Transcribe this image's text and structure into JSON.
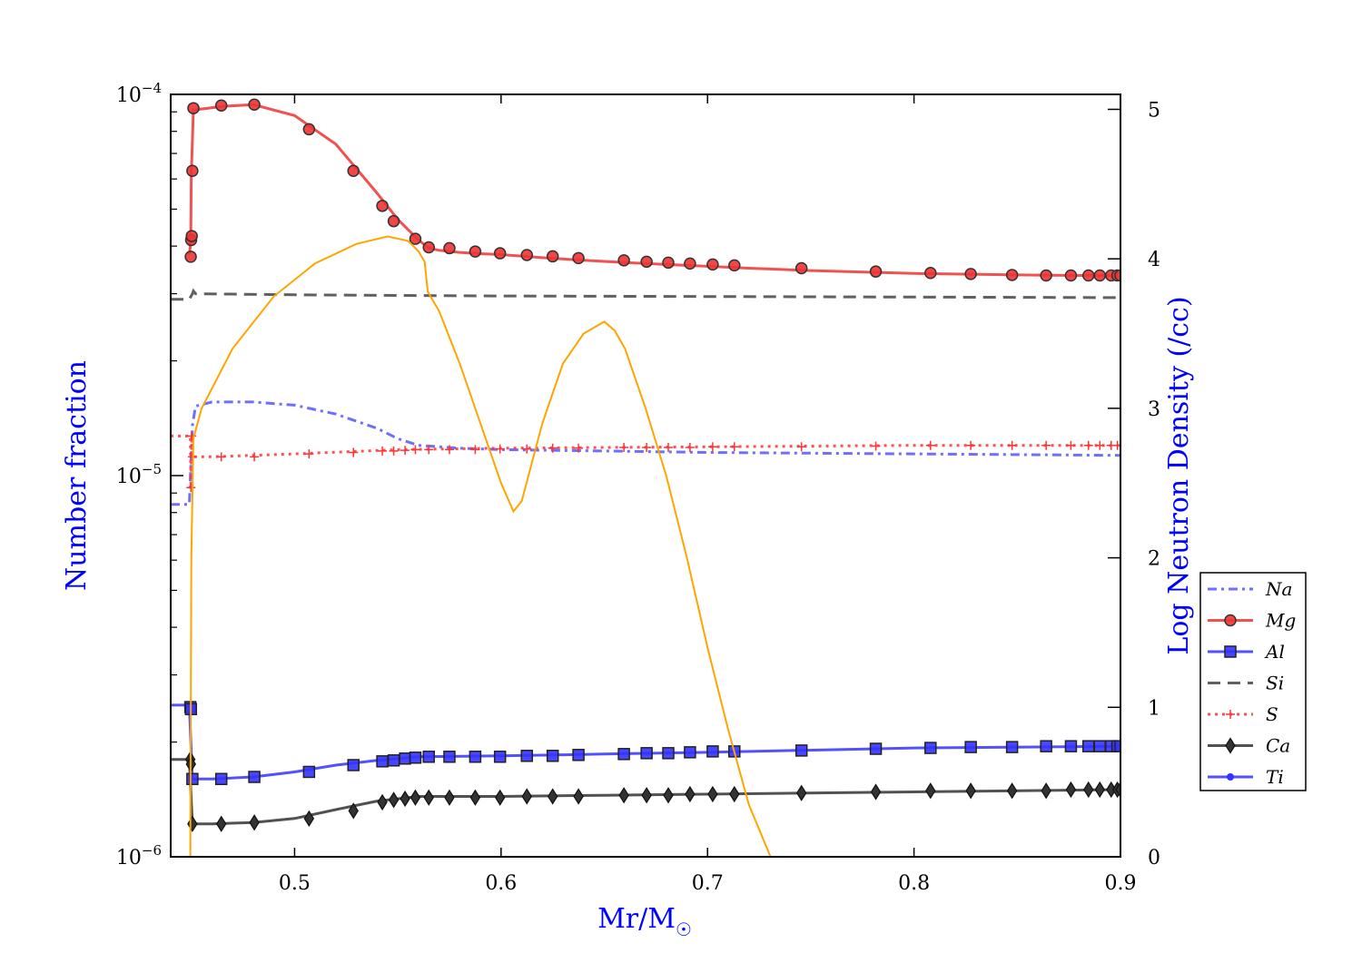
{
  "chart_data": {
    "type": "line",
    "x_axis": {
      "label": "Mr/M",
      "label_symbol": "☉",
      "range": [
        0.44,
        0.9
      ],
      "ticks": [
        0.5,
        0.6,
        0.7,
        0.8,
        0.9
      ],
      "tick_labels": [
        "0.5",
        "0.6",
        "0.7",
        "0.8",
        "0.9"
      ]
    },
    "y_left": {
      "label": "Number fraction",
      "scale": "log",
      "range": [
        1e-06,
        0.0001
      ],
      "ticks": [
        1e-06,
        1e-05,
        0.0001
      ],
      "tick_labels": [
        {
          "base": "10",
          "exp": "−6"
        },
        {
          "base": "10",
          "exp": "−5"
        },
        {
          "base": "10",
          "exp": "−4"
        }
      ]
    },
    "y_right": {
      "label": "Log Neutron Density (/cc)",
      "scale": "linear",
      "range": [
        0,
        5.1
      ],
      "ticks": [
        0,
        1,
        2,
        3,
        4,
        5
      ],
      "tick_labels": [
        "0",
        "1",
        "2",
        "3",
        "4",
        "5"
      ]
    },
    "grid": false,
    "legend_position": "lower-right outside",
    "colors": {
      "axis_label": "#0000ff",
      "neutron_density": "#ffa500"
    },
    "series": [
      {
        "name": "Na",
        "color": "#5555ff",
        "style": "dashdot",
        "marker": "none",
        "axis": "left",
        "x": [
          0.44,
          0.449,
          0.4505,
          0.452,
          0.46,
          0.48,
          0.5,
          0.52,
          0.54,
          0.55,
          0.56,
          0.58,
          0.6,
          0.65,
          0.7,
          0.8,
          0.9
        ],
        "y": [
          8.4e-06,
          8.4e-06,
          1.35e-05,
          1.52e-05,
          1.56e-05,
          1.56e-05,
          1.53e-05,
          1.45e-05,
          1.33e-05,
          1.25e-05,
          1.2e-05,
          1.18e-05,
          1.17e-05,
          1.16e-05,
          1.15e-05,
          1.14e-05,
          1.13e-05
        ]
      },
      {
        "name": "Mg",
        "color": "#ee3333",
        "style": "solid",
        "marker": "circle",
        "axis": "left",
        "x": [
          0.449,
          0.4495,
          0.4497,
          0.45,
          0.451,
          0.465,
          0.48,
          0.5,
          0.52,
          0.54,
          0.55,
          0.56,
          0.565,
          0.57,
          0.58,
          0.59,
          0.6,
          0.62,
          0.64,
          0.66,
          0.68,
          0.7,
          0.72,
          0.75,
          0.8,
          0.85,
          0.88,
          0.9
        ],
        "y": [
          3.8e-05,
          4e-05,
          4.2e-05,
          6.2e-05,
          9.1e-05,
          9.3e-05,
          9.4e-05,
          8.8e-05,
          7.4e-05,
          5.5e-05,
          4.7e-05,
          4.15e-05,
          3.95e-05,
          3.9e-05,
          3.85e-05,
          3.82e-05,
          3.8e-05,
          3.73e-05,
          3.67e-05,
          3.62e-05,
          3.58e-05,
          3.54e-05,
          3.5e-05,
          3.45e-05,
          3.39e-05,
          3.36e-05,
          3.35e-05,
          3.35e-05
        ],
        "marker_x": [
          0.4497,
          0.4499,
          0.4502,
          0.4505,
          0.451,
          0.4645,
          0.4805,
          0.507,
          0.5285,
          0.5425,
          0.548,
          0.5585,
          0.565,
          0.575,
          0.5875,
          0.5995,
          0.6125,
          0.625,
          0.6375,
          0.6595,
          0.6705,
          0.681,
          0.6915,
          0.7025,
          0.713,
          0.7455,
          0.7815,
          0.808,
          0.8275,
          0.8475,
          0.864,
          0.876,
          0.8845,
          0.89,
          0.8955,
          0.8985,
          0.9
        ],
        "marker_y": [
          3.75e-05,
          4.15e-05,
          4.25e-05,
          6.3e-05,
          9.2e-05,
          9.35e-05,
          9.4e-05,
          8.1e-05,
          6.3e-05,
          5.1e-05,
          4.65e-05,
          4.18e-05,
          3.97e-05,
          3.95e-05,
          3.87e-05,
          3.83e-05,
          3.79e-05,
          3.76e-05,
          3.72e-05,
          3.67e-05,
          3.64e-05,
          3.62e-05,
          3.6e-05,
          3.58e-05,
          3.56e-05,
          3.5e-05,
          3.43e-05,
          3.4e-05,
          3.38e-05,
          3.36e-05,
          3.35e-05,
          3.35e-05,
          3.35e-05,
          3.35e-05,
          3.35e-05,
          3.35e-05,
          3.35e-05
        ]
      },
      {
        "name": "Al",
        "color": "#3333ff",
        "style": "solid",
        "marker": "square",
        "axis": "left",
        "x": [
          0.44,
          0.449,
          0.4505,
          0.46,
          0.48,
          0.5,
          0.52,
          0.54,
          0.56,
          0.6,
          0.65,
          0.7,
          0.8,
          0.9
        ],
        "y": [
          2.5e-06,
          2.5e-06,
          1.6e-06,
          1.6e-06,
          1.62e-06,
          1.67e-06,
          1.74e-06,
          1.79e-06,
          1.83e-06,
          1.84e-06,
          1.86e-06,
          1.88e-06,
          1.93e-06,
          1.95e-06
        ],
        "marker_x": [
          0.4495,
          0.4498,
          0.4505,
          0.4645,
          0.4805,
          0.507,
          0.5285,
          0.5425,
          0.548,
          0.5535,
          0.5585,
          0.565,
          0.575,
          0.5875,
          0.5995,
          0.6125,
          0.625,
          0.6375,
          0.6595,
          0.6705,
          0.681,
          0.6915,
          0.7025,
          0.713,
          0.7455,
          0.7815,
          0.808,
          0.8275,
          0.8475,
          0.864,
          0.876,
          0.8845,
          0.89,
          0.8955,
          0.8985,
          0.9
        ],
        "marker_y": [
          2.47e-06,
          2.44e-06,
          1.6e-06,
          1.6e-06,
          1.62e-06,
          1.67e-06,
          1.74e-06,
          1.78e-06,
          1.79e-06,
          1.81e-06,
          1.82e-06,
          1.83e-06,
          1.83e-06,
          1.83e-06,
          1.83e-06,
          1.84e-06,
          1.84e-06,
          1.85e-06,
          1.86e-06,
          1.87e-06,
          1.87e-06,
          1.88e-06,
          1.89e-06,
          1.89e-06,
          1.9e-06,
          1.92e-06,
          1.93e-06,
          1.94e-06,
          1.94e-06,
          1.95e-06,
          1.95e-06,
          1.95e-06,
          1.95e-06,
          1.95e-06,
          1.95e-06,
          1.95e-06
        ]
      },
      {
        "name": "Si",
        "color": "#444444",
        "style": "dashed",
        "marker": "none",
        "axis": "left",
        "x": [
          0.44,
          0.449,
          0.4505,
          0.451,
          0.452,
          0.5,
          0.6,
          0.7,
          0.8,
          0.9
        ],
        "y": [
          2.9e-05,
          2.9e-05,
          3e-05,
          3.05e-05,
          3e-05,
          2.98e-05,
          2.96e-05,
          2.95e-05,
          2.94e-05,
          2.93e-05
        ]
      },
      {
        "name": "S",
        "color": "#ff3333",
        "style": "dotted",
        "marker": "plus",
        "axis": "left",
        "x": [
          0.44,
          0.4495,
          0.4498,
          0.4502,
          0.4505,
          0.46,
          0.5,
          0.55,
          0.6,
          0.65,
          0.7,
          0.8,
          0.9
        ],
        "y": [
          1.27e-05,
          1.27e-05,
          9.3e-06,
          1.27e-05,
          1.12e-05,
          1.12e-05,
          1.14e-05,
          1.17e-05,
          1.18e-05,
          1.185e-05,
          1.19e-05,
          1.2e-05,
          1.2e-05
        ],
        "marker_x": [
          0.4498,
          0.4502,
          0.4505,
          0.4645,
          0.4805,
          0.507,
          0.5285,
          0.5425,
          0.548,
          0.5535,
          0.5585,
          0.565,
          0.575,
          0.5875,
          0.5995,
          0.6125,
          0.625,
          0.6375,
          0.6595,
          0.6705,
          0.681,
          0.6915,
          0.7025,
          0.713,
          0.7455,
          0.7815,
          0.808,
          0.8275,
          0.8475,
          0.864,
          0.876,
          0.8845,
          0.89,
          0.8955,
          0.8985,
          0.9
        ],
        "marker_y": [
          9.3e-06,
          1.27e-05,
          1.12e-05,
          1.12e-05,
          1.12e-05,
          1.14e-05,
          1.15e-05,
          1.16e-05,
          1.16e-05,
          1.165e-05,
          1.17e-05,
          1.17e-05,
          1.17e-05,
          1.17e-05,
          1.175e-05,
          1.175e-05,
          1.18e-05,
          1.18e-05,
          1.185e-05,
          1.185e-05,
          1.185e-05,
          1.185e-05,
          1.19e-05,
          1.19e-05,
          1.19e-05,
          1.195e-05,
          1.2e-05,
          1.2e-05,
          1.2e-05,
          1.2e-05,
          1.2e-05,
          1.2e-05,
          1.2e-05,
          1.2e-05,
          1.2e-05,
          1.2e-05
        ]
      },
      {
        "name": "Ca",
        "color": "#333333",
        "style": "solid",
        "marker": "diamond",
        "axis": "left",
        "x": [
          0.44,
          0.449,
          0.4505,
          0.46,
          0.48,
          0.5,
          0.52,
          0.54,
          0.56,
          0.6,
          0.65,
          0.7,
          0.8,
          0.9
        ],
        "y": [
          1.8e-06,
          1.8e-06,
          1.22e-06,
          1.22e-06,
          1.23e-06,
          1.26e-06,
          1.33e-06,
          1.4e-06,
          1.44e-06,
          1.44e-06,
          1.45e-06,
          1.46e-06,
          1.48e-06,
          1.5e-06
        ],
        "marker_x": [
          0.4495,
          0.4498,
          0.4505,
          0.4645,
          0.4805,
          0.507,
          0.5285,
          0.5425,
          0.548,
          0.5535,
          0.5585,
          0.565,
          0.575,
          0.5875,
          0.5995,
          0.6125,
          0.625,
          0.6375,
          0.6595,
          0.6705,
          0.681,
          0.6915,
          0.7025,
          0.713,
          0.7455,
          0.7815,
          0.808,
          0.8275,
          0.8475,
          0.864,
          0.876,
          0.8845,
          0.89,
          0.8955,
          0.8985,
          0.9
        ],
        "marker_y": [
          1.8e-06,
          1.75e-06,
          1.22e-06,
          1.22e-06,
          1.23e-06,
          1.26e-06,
          1.32e-06,
          1.39e-06,
          1.41e-06,
          1.42e-06,
          1.43e-06,
          1.43e-06,
          1.43e-06,
          1.43e-06,
          1.43e-06,
          1.44e-06,
          1.44e-06,
          1.44e-06,
          1.45e-06,
          1.45e-06,
          1.45e-06,
          1.46e-06,
          1.46e-06,
          1.46e-06,
          1.47e-06,
          1.48e-06,
          1.49e-06,
          1.49e-06,
          1.49e-06,
          1.49e-06,
          1.5e-06,
          1.5e-06,
          1.5e-06,
          1.5e-06,
          1.5e-06,
          1.5e-06
        ]
      },
      {
        "name": "Ti",
        "color": "#3333ff",
        "style": "solid",
        "marker": "dot",
        "axis": "left",
        "x": [],
        "y": []
      },
      {
        "name": "",
        "color": "#ffa500",
        "style": "solid",
        "marker": "none",
        "axis": "right",
        "x": [
          0.4495,
          0.45,
          0.451,
          0.455,
          0.47,
          0.49,
          0.51,
          0.53,
          0.545,
          0.555,
          0.56,
          0.563,
          0.5645,
          0.57,
          0.58,
          0.59,
          0.6,
          0.606,
          0.61,
          0.62,
          0.63,
          0.64,
          0.65,
          0.655,
          0.66,
          0.67,
          0.68,
          0.69,
          0.7,
          0.71,
          0.72,
          0.7305
        ],
        "y": [
          0.0,
          2.0,
          2.8,
          3.0,
          3.4,
          3.75,
          3.97,
          4.1,
          4.15,
          4.12,
          4.05,
          3.98,
          3.78,
          3.65,
          3.3,
          2.9,
          2.5,
          2.31,
          2.38,
          2.9,
          3.3,
          3.5,
          3.58,
          3.52,
          3.4,
          3.0,
          2.55,
          2.0,
          1.4,
          0.85,
          0.35,
          0.0
        ]
      }
    ],
    "legend": [
      {
        "name": "Na",
        "color": "#5555ff",
        "style": "dashdot",
        "marker": "none"
      },
      {
        "name": "Mg",
        "color": "#ee3333",
        "style": "solid",
        "marker": "circle"
      },
      {
        "name": "Al",
        "color": "#3333ff",
        "style": "solid",
        "marker": "square"
      },
      {
        "name": "Si",
        "color": "#444444",
        "style": "dashed",
        "marker": "none"
      },
      {
        "name": "S",
        "color": "#ff3333",
        "style": "dotted",
        "marker": "plus"
      },
      {
        "name": "Ca",
        "color": "#333333",
        "style": "solid",
        "marker": "diamond"
      },
      {
        "name": "Ti",
        "color": "#3333ff",
        "style": "solid",
        "marker": "dot"
      }
    ]
  }
}
